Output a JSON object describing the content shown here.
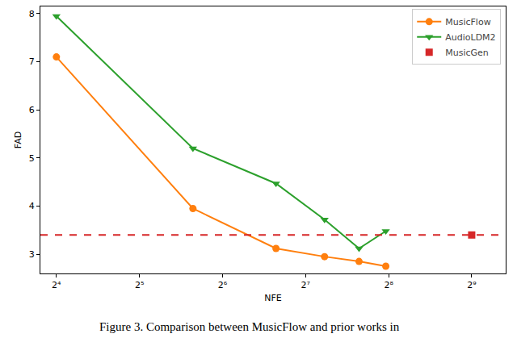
{
  "chart_data": {
    "type": "line",
    "x_label": "NFE",
    "y_label": "FAD",
    "caption": "Figure 3. Comparison between MusicFlow and prior works in",
    "log": "x",
    "grid": false,
    "legend": "top right",
    "xlim": [
      14,
      680
    ],
    "xticks": [
      {
        "value": 16,
        "label": "2⁴"
      },
      {
        "value": 32,
        "label": "2⁵"
      },
      {
        "value": 64,
        "label": "2⁶"
      },
      {
        "value": 128,
        "label": "2⁷"
      },
      {
        "value": 256,
        "label": "2⁸"
      },
      {
        "value": 512,
        "label": "2⁹"
      }
    ],
    "ylim": [
      2.6,
      8.15
    ],
    "yticks": [
      3,
      4,
      5,
      6,
      7,
      8
    ],
    "series": [
      {
        "name": "MusicFlow",
        "color": "#ff7f0e",
        "marker": "circle",
        "line_style": "solid",
        "x": [
          16,
          50,
          100,
          150,
          200,
          250
        ],
        "values": [
          7.1,
          3.95,
          3.12,
          2.95,
          2.85,
          2.75
        ]
      },
      {
        "name": "AudioLDM2",
        "color": "#2ca02c",
        "marker": "triangle-down",
        "line_style": "solid",
        "x": [
          16,
          50,
          100,
          150,
          200,
          250
        ],
        "values": [
          7.95,
          5.2,
          4.47,
          3.72,
          3.12,
          3.48
        ]
      },
      {
        "name": "MusicGen",
        "color": "#d62728",
        "marker": "square",
        "line_style": "dashed",
        "x": [
          512
        ],
        "values": [
          3.4
        ]
      }
    ]
  }
}
